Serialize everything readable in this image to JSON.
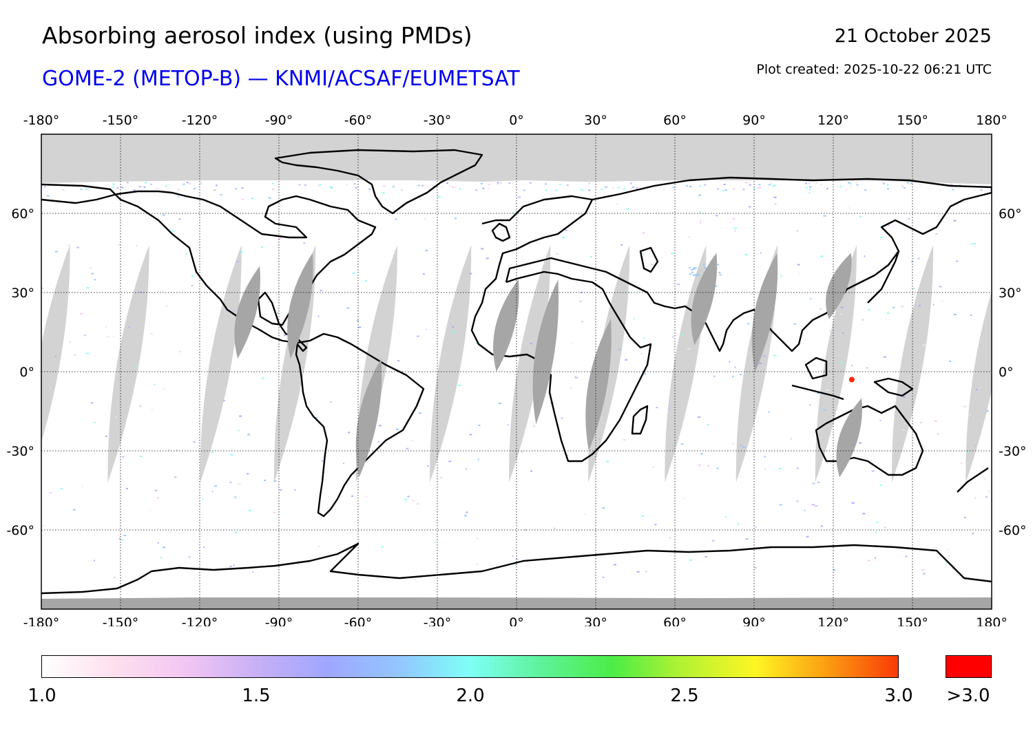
{
  "title": "Absorbing aerosol index (using PMDs)",
  "subtitle": "GOME-2 (METOP-B) — KNMI/ACSAF/EUMETSAT",
  "date": "21 October 2025",
  "plot_created": "Plot created: 2025-10-22 06:21 UTC",
  "map": {
    "projection": "equirectangular",
    "lon_range": [
      -180,
      180
    ],
    "lat_range": [
      -90,
      90
    ],
    "lon_ticks": [
      -180,
      -150,
      -120,
      -90,
      -60,
      -30,
      0,
      30,
      60,
      90,
      120,
      150,
      180
    ],
    "lat_ticks": [
      60,
      30,
      0,
      -30,
      -60
    ],
    "lon_tick_labels": [
      "-180°",
      "-150°",
      "-120°",
      "-90°",
      "-60°",
      "-30°",
      "0°",
      "30°",
      "60°",
      "90°",
      "120°",
      "150°",
      "180°"
    ],
    "lat_tick_labels": [
      "60°",
      "30°",
      "0°",
      "-30°",
      "-60°"
    ],
    "polar_night_color": "#d3d3d3",
    "orbit_gap_color": "#d3d3d3",
    "land_gap_color": "#a6a6a6",
    "coastline_color": "#000000",
    "orbit_gap_centers_lon_at_equator": [
      -177,
      -147,
      -112,
      -84,
      -53,
      -25,
      5,
      35,
      64,
      91,
      121,
      150,
      178
    ],
    "aerosol_hotspot": {
      "lon": 127,
      "lat": -3,
      "value": "> 3.0",
      "color": "#ff2a00"
    }
  },
  "colorbar": {
    "min": 1.0,
    "max": 3.0,
    "tick_labels": [
      "1.0",
      "1.5",
      "2.0",
      "2.5",
      "3.0"
    ],
    "tick_values": [
      1.0,
      1.5,
      2.0,
      2.5,
      3.0
    ],
    "over_label": ">3.0",
    "over_color": "#ff0000",
    "gradient_colors": [
      "#ffffff",
      "#fde0ee",
      "#f3c6f3",
      "#c8b0f6",
      "#9fa6ff",
      "#93c6ff",
      "#7efff6",
      "#5ef29a",
      "#4cec46",
      "#b6f232",
      "#fdf623",
      "#fc9d12",
      "#f93a08"
    ]
  }
}
